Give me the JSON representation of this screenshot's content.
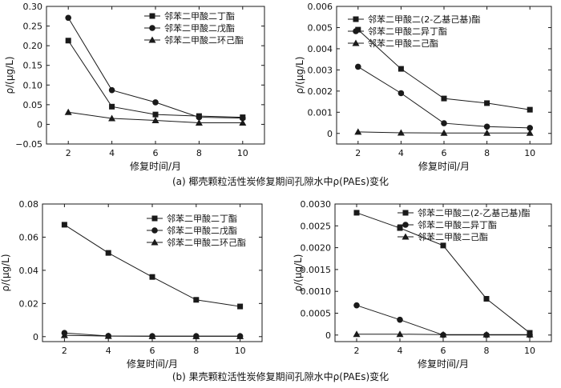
{
  "captions": {
    "a": "(a) 椰壳颗粒活性炭修复期间孔隙水中ρ(PAEs)变化",
    "b": "(b) 果壳颗粒活性炭修复期间孔隙水中ρ(PAEs)变化"
  },
  "colors": {
    "line": "#1a1a1a",
    "background": "#ffffff"
  },
  "chart_data": [
    {
      "id": "a-left",
      "type": "line",
      "xlabel": "修复时间/月",
      "ylabel": "ρ/(μg/L)",
      "x": [
        2,
        4,
        6,
        8,
        10
      ],
      "xlim": [
        1,
        11
      ],
      "xticks": [
        "2",
        "4",
        "6",
        "8",
        "10"
      ],
      "ylim": [
        -0.05,
        0.3
      ],
      "yticks": [
        "−0.05",
        "0",
        "0.05",
        "0.10",
        "0.15",
        "0.20",
        "0.25",
        "0.30"
      ],
      "ytick_values": [
        -0.05,
        0,
        0.05,
        0.1,
        0.15,
        0.2,
        0.25,
        0.3
      ],
      "grid": false,
      "legend_position": "top-right",
      "series": [
        {
          "name": "邻苯二甲酸二丁酯",
          "marker": "square",
          "values": [
            0.213,
            0.045,
            0.025,
            0.021,
            0.018
          ]
        },
        {
          "name": "邻苯二甲酸二戊酯",
          "marker": "circle",
          "values": [
            0.271,
            0.087,
            0.056,
            0.018,
            0.016
          ]
        },
        {
          "name": "邻苯二甲酸二环己酯",
          "marker": "triangle",
          "values": [
            0.031,
            0.015,
            0.01,
            0.004,
            0.004
          ]
        }
      ]
    },
    {
      "id": "a-right",
      "type": "line",
      "xlabel": "修复时间/月",
      "ylabel": "ρ/(μg/L)",
      "x": [
        2,
        4,
        6,
        8,
        10
      ],
      "xlim": [
        1,
        11
      ],
      "xticks": [
        "2",
        "4",
        "6",
        "8",
        "10"
      ],
      "ylim": [
        -0.0005,
        0.006
      ],
      "yticks": [
        "0",
        "0.001",
        "0.002",
        "0.003",
        "0.004",
        "0.005",
        "0.006"
      ],
      "ytick_values": [
        0,
        0.001,
        0.002,
        0.003,
        0.004,
        0.005,
        0.006
      ],
      "grid": false,
      "legend_position": "top-right",
      "series": [
        {
          "name": "邻苯二甲酸二(2-乙基己基)酯",
          "marker": "square",
          "values": [
            0.0049,
            0.00305,
            0.00165,
            0.00143,
            0.00112
          ]
        },
        {
          "name": "邻苯二甲酸二异丁酯",
          "marker": "circle",
          "values": [
            0.00315,
            0.0019,
            0.00048,
            0.00032,
            0.00026
          ]
        },
        {
          "name": "邻苯二甲酸二己酯",
          "marker": "triangle",
          "values": [
            7e-05,
            3e-05,
            2e-05,
            2e-05,
            2e-05
          ]
        }
      ]
    },
    {
      "id": "b-left",
      "type": "line",
      "xlabel": "修复时间/月",
      "ylabel": "ρ/(μg/L)",
      "x": [
        2,
        4,
        6,
        8,
        10
      ],
      "xlim": [
        1,
        11
      ],
      "xticks": [
        "2",
        "4",
        "6",
        "8",
        "10"
      ],
      "ylim": [
        -0.003,
        0.08
      ],
      "yticks": [
        "0",
        "0.02",
        "0.04",
        "0.06",
        "0.08"
      ],
      "ytick_values": [
        0,
        0.02,
        0.04,
        0.06,
        0.08
      ],
      "grid": false,
      "legend_position": "top-right",
      "series": [
        {
          "name": "邻苯二甲酸二丁酯",
          "marker": "square",
          "values": [
            0.0675,
            0.0505,
            0.036,
            0.0222,
            0.0182
          ]
        },
        {
          "name": "邻苯二甲酸二戊酯",
          "marker": "circle",
          "values": [
            0.0022,
            0.0004,
            0.0003,
            0.0003,
            0.0003
          ]
        },
        {
          "name": "邻苯二甲酸二环己酯",
          "marker": "triangle",
          "values": [
            0.0008,
            0.0003,
            0.0002,
            0.0002,
            0.0002
          ]
        }
      ]
    },
    {
      "id": "b-right",
      "type": "line",
      "xlabel": "修复时间/月",
      "ylabel": "ρ/(μg/L)",
      "x": [
        2,
        4,
        6,
        8,
        10
      ],
      "xlim": [
        1,
        11
      ],
      "xticks": [
        "2",
        "4",
        "6",
        "8",
        "10"
      ],
      "ylim": [
        -0.00015,
        0.003
      ],
      "yticks": [
        "0",
        "0.0005",
        "0.0010",
        "0.0015",
        "0.0020",
        "0.0025",
        "0.0030"
      ],
      "ytick_values": [
        0,
        0.0005,
        0.001,
        0.0015,
        0.002,
        0.0025,
        0.003
      ],
      "grid": false,
      "legend_position": "top-right",
      "series": [
        {
          "name": "邻苯二甲酸二(2-乙基己基)酯",
          "marker": "square",
          "values": [
            0.0028,
            0.00245,
            0.00205,
            0.00083,
            5e-05
          ]
        },
        {
          "name": "邻苯二甲酸二异丁酯",
          "marker": "circle",
          "values": [
            0.00068,
            0.00035,
            0.0,
            0.0,
            0.0
          ]
        },
        {
          "name": "邻苯二甲酸二己酯",
          "marker": "triangle",
          "values": [
            2e-05,
            2e-05,
            1e-05,
            1e-05,
            1e-05
          ]
        }
      ]
    }
  ]
}
